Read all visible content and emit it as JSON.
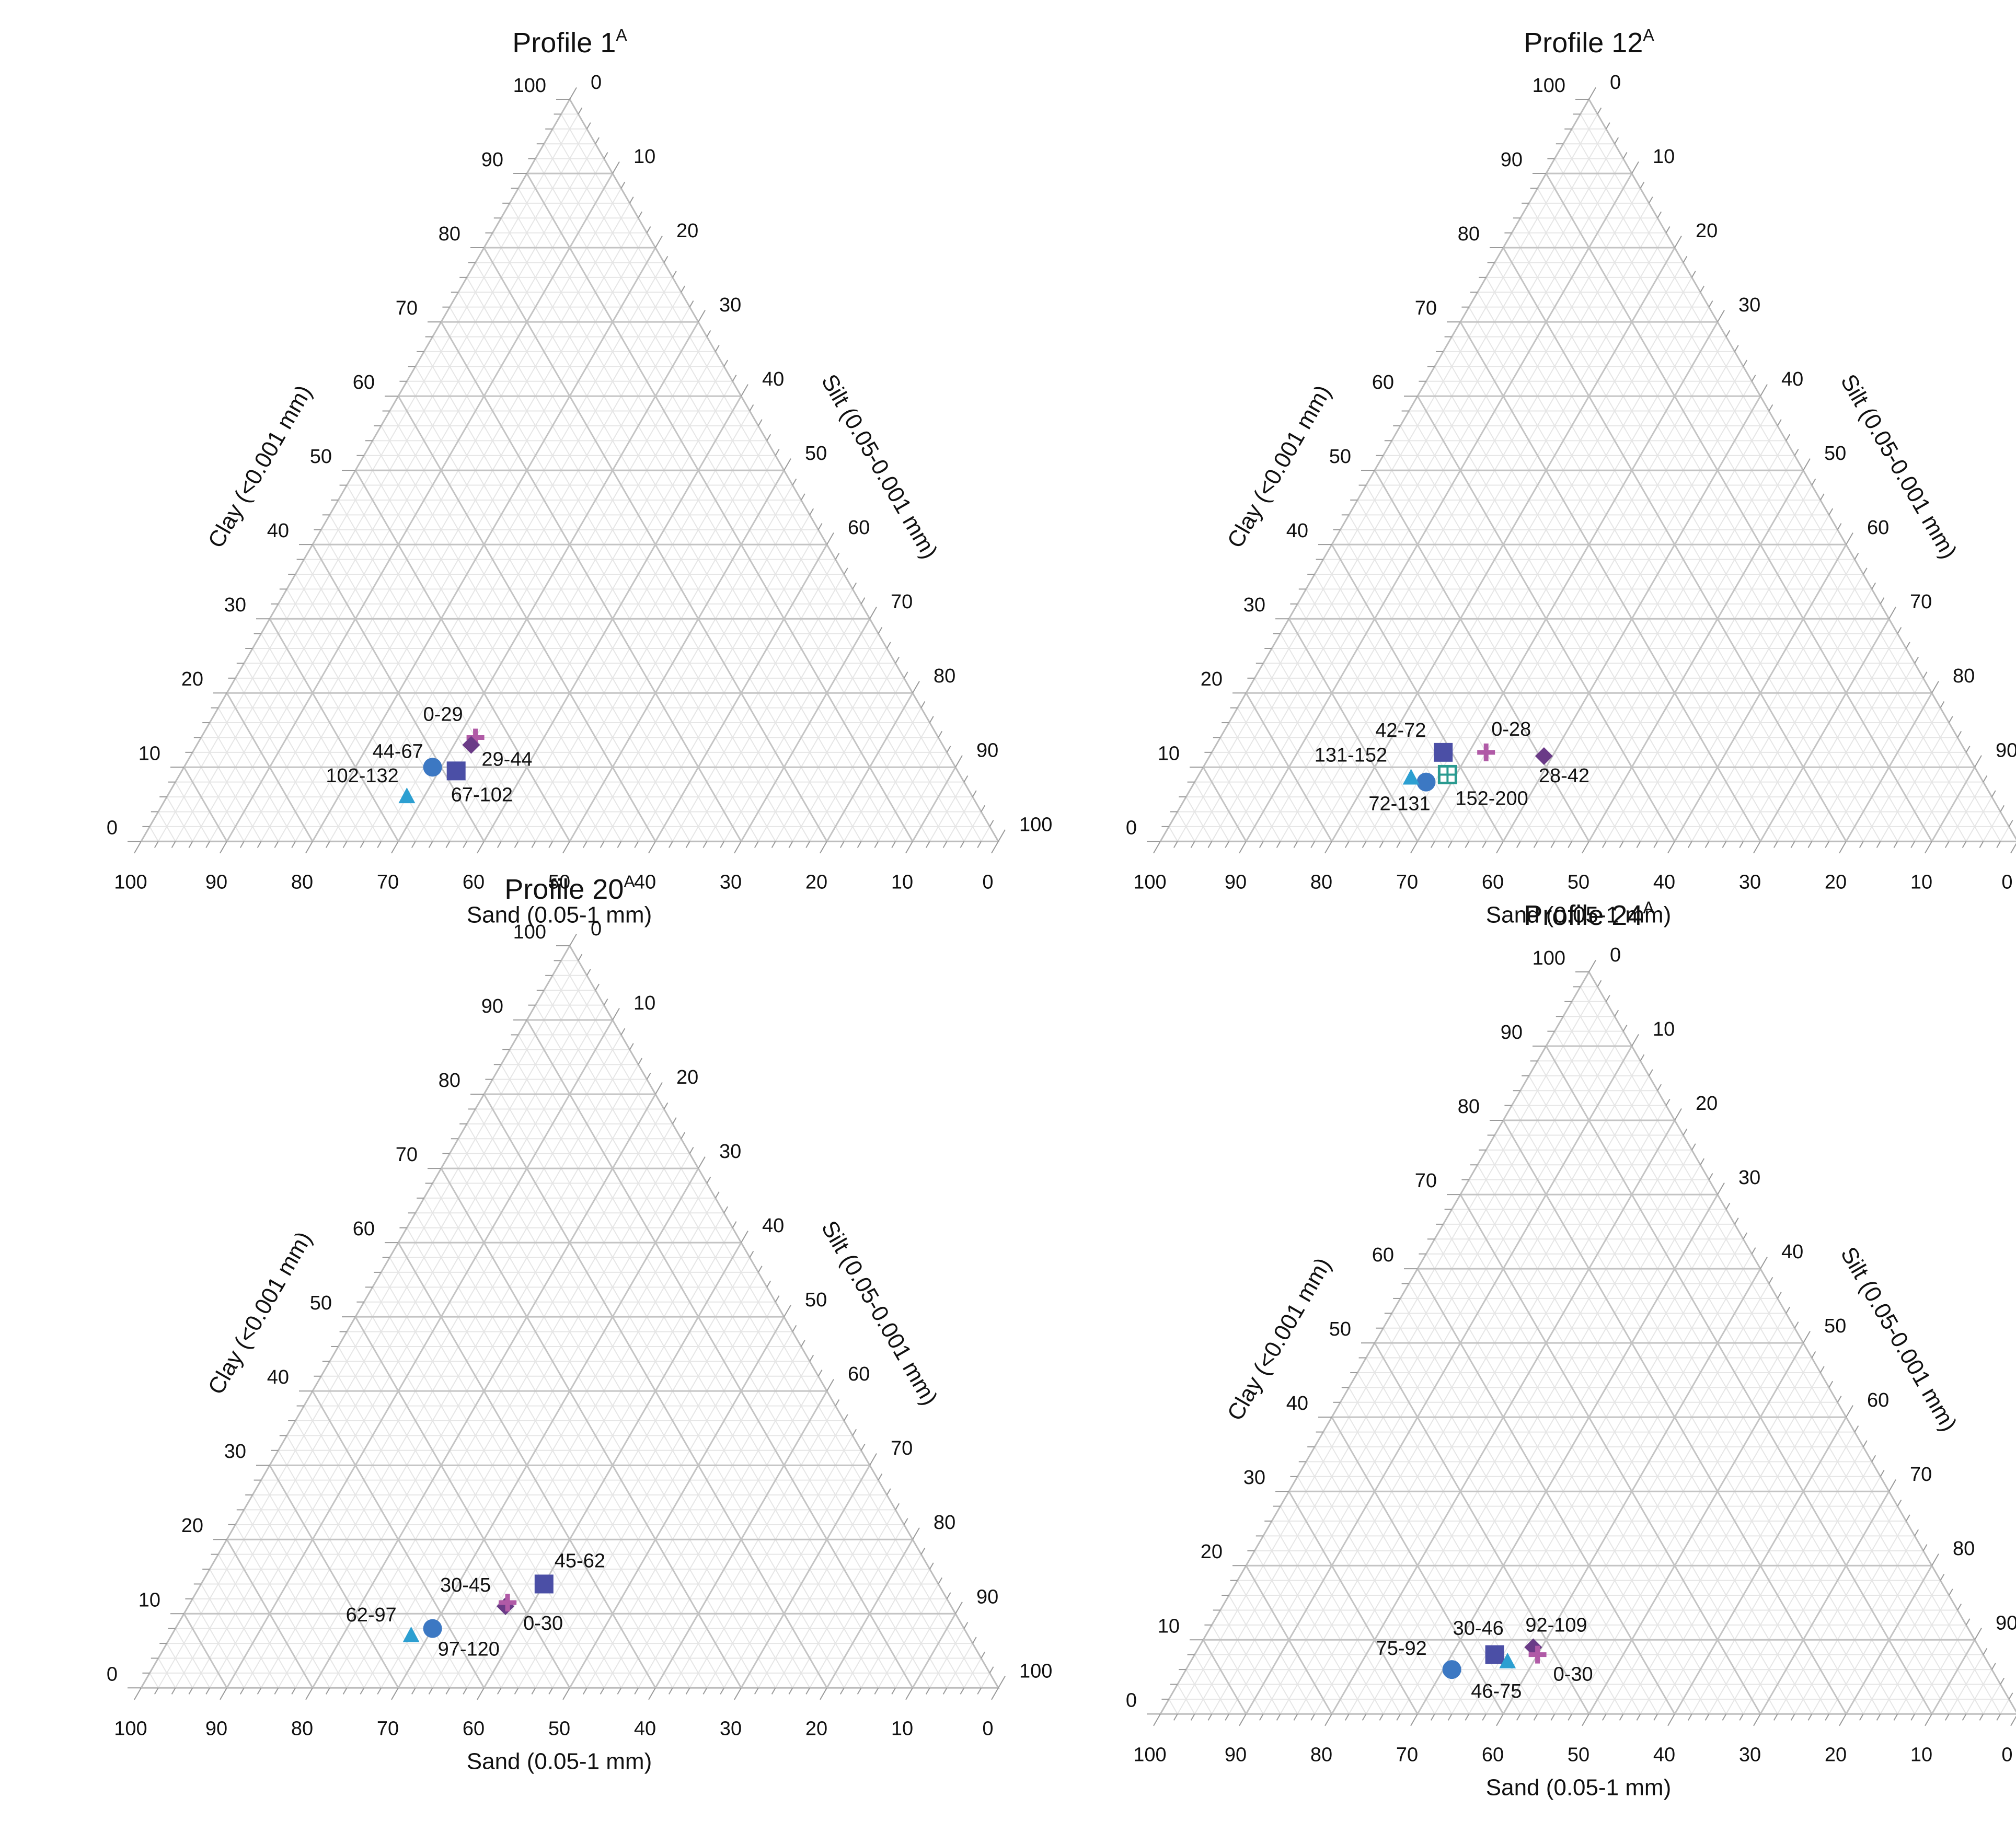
{
  "chart_data": [
    {
      "type": "ternary",
      "title": "Profile 1",
      "title_superscript": "A",
      "axes": {
        "clay": "Clay (<0.001 mm)",
        "silt": "Silt (0.05-0.001 mm)",
        "sand": "Sand (0.05-1 mm)"
      },
      "ticks": [
        "0",
        "10",
        "20",
        "30",
        "40",
        "50",
        "60",
        "70",
        "80",
        "90",
        "100"
      ],
      "series": [
        {
          "name": "0-29",
          "marker": "plus",
          "color": "#b05aa6",
          "sand": 54,
          "silt": 32,
          "clay": 14
        },
        {
          "name": "29-44",
          "marker": "diamond",
          "color": "#6a3b87",
          "sand": 55,
          "silt": 32,
          "clay": 13
        },
        {
          "name": "44-67",
          "marker": "circle",
          "color": "#3c78c3",
          "sand": 61,
          "silt": 29,
          "clay": 10
        },
        {
          "name": "67-102",
          "marker": "square",
          "color": "#4b4fa6",
          "sand": 58.5,
          "silt": 32,
          "clay": 9.5
        },
        {
          "name": "102-132",
          "marker": "triangle",
          "color": "#2c9fd1",
          "sand": 66,
          "silt": 28,
          "clay": 6
        }
      ]
    },
    {
      "type": "ternary",
      "title": "Profile 12",
      "title_superscript": "A",
      "axes": {
        "clay": "Clay (<0.001 mm)",
        "silt": "Silt (0.05-0.001 mm)",
        "sand": "Sand (0.05-1 mm)"
      },
      "ticks": [
        "0",
        "10",
        "20",
        "30",
        "40",
        "50",
        "60",
        "70",
        "80",
        "90",
        "100"
      ],
      "series": [
        {
          "name": "0-28",
          "marker": "plus",
          "color": "#b05aa6",
          "sand": 56,
          "silt": 32,
          "clay": 12
        },
        {
          "name": "28-42",
          "marker": "diamond",
          "color": "#6a3b87",
          "sand": 49.5,
          "silt": 39,
          "clay": 11.5
        },
        {
          "name": "42-72",
          "marker": "square",
          "color": "#4b4fa6",
          "sand": 61,
          "silt": 27,
          "clay": 12
        },
        {
          "name": "72-131",
          "marker": "circle",
          "color": "#3c78c3",
          "sand": 65,
          "silt": 27,
          "clay": 8
        },
        {
          "name": "131-152",
          "marker": "triangle",
          "color": "#2c9fd1",
          "sand": 66.5,
          "silt": 25,
          "clay": 8.5
        },
        {
          "name": "152-200",
          "marker": "gridsq",
          "color": "#2a9a90",
          "sand": 62,
          "silt": 29,
          "clay": 9
        }
      ]
    },
    {
      "type": "ternary",
      "title": "Profile 20",
      "title_superscript": "A",
      "axes": {
        "clay": "Clay (<0.001 mm)",
        "silt": "Silt (0.05-0.001 mm)",
        "sand": "Sand (0.05-1 mm)"
      },
      "ticks": [
        "0",
        "10",
        "20",
        "30",
        "40",
        "50",
        "60",
        "70",
        "80",
        "90",
        "100"
      ],
      "series": [
        {
          "name": "45-62",
          "marker": "square",
          "color": "#4b4fa6",
          "sand": 46,
          "silt": 40,
          "clay": 14
        },
        {
          "name": "30-45",
          "marker": "diamond",
          "color": "#6a3b87",
          "sand": 52,
          "silt": 37,
          "clay": 11
        },
        {
          "name": "0-30",
          "marker": "plus",
          "color": "#b05aa6",
          "sand": 51.5,
          "silt": 37,
          "clay": 11.5
        },
        {
          "name": "97-120",
          "marker": "circle",
          "color": "#3c78c3",
          "sand": 62,
          "silt": 30,
          "clay": 8
        },
        {
          "name": "62-97",
          "marker": "triangle",
          "color": "#2c9fd1",
          "sand": 65,
          "silt": 28,
          "clay": 7
        }
      ]
    },
    {
      "type": "ternary",
      "title": "Profile 24",
      "title_superscript": "A",
      "axes": {
        "clay": "Clay (<0.001 mm)",
        "silt": "Silt (0.05-0.001 mm)",
        "sand": "Sand (0.05-1 mm)"
      },
      "ticks": [
        "0",
        "10",
        "20",
        "30",
        "40",
        "50",
        "60",
        "70",
        "80",
        "90",
        "100"
      ],
      "series": [
        {
          "name": "92-109",
          "marker": "diamond",
          "color": "#6a3b87",
          "sand": 52,
          "silt": 39,
          "clay": 9
        },
        {
          "name": "30-46",
          "marker": "square",
          "color": "#4b4fa6",
          "sand": 57,
          "silt": 35,
          "clay": 8
        },
        {
          "name": "0-30",
          "marker": "plus",
          "color": "#b05aa6",
          "sand": 52,
          "silt": 40,
          "clay": 8
        },
        {
          "name": "46-75",
          "marker": "triangle",
          "color": "#2c9fd1",
          "sand": 56,
          "silt": 37,
          "clay": 7
        },
        {
          "name": "75-92",
          "marker": "circle",
          "color": "#3c78c3",
          "sand": 63,
          "silt": 31,
          "clay": 6
        }
      ]
    }
  ]
}
